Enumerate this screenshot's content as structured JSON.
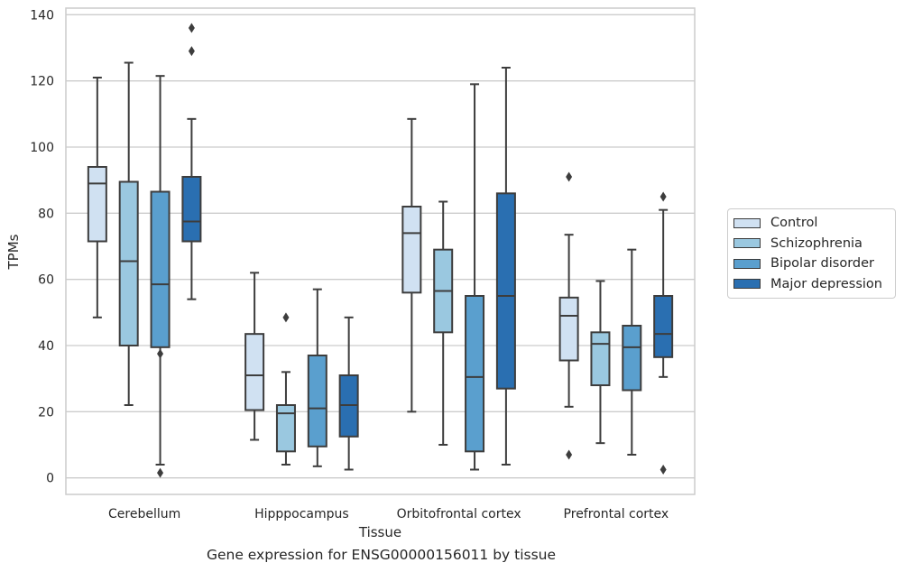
{
  "chart_data": {
    "type": "box",
    "title": "Gene expression for ENSG00000156011 by tissue",
    "xlabel": "Tissue",
    "ylabel": "TPMs",
    "ylim": [
      -5,
      142
    ],
    "yticks": [
      0,
      20,
      40,
      60,
      80,
      100,
      120,
      140
    ],
    "grid": "horizontal",
    "legend_position": "right",
    "categories": [
      "Cerebellum",
      "Hipppocampus",
      "Orbitofrontal cortex",
      "Prefrontal cortex"
    ],
    "series": [
      {
        "name": "Control",
        "color": "#d0e1f2",
        "boxes": [
          {
            "whisker_low": 48.5,
            "q1": 71.5,
            "median": 89,
            "q3": 94,
            "whisker_high": 121,
            "outliers": []
          },
          {
            "whisker_low": 11.5,
            "q1": 20.5,
            "median": 31,
            "q3": 43.5,
            "whisker_high": 62,
            "outliers": []
          },
          {
            "whisker_low": 20,
            "q1": 56,
            "median": 74,
            "q3": 82,
            "whisker_high": 108.5,
            "outliers": []
          },
          {
            "whisker_low": 21.5,
            "q1": 35.5,
            "median": 49,
            "q3": 54.5,
            "whisker_high": 73.5,
            "outliers": [
              7,
              91
            ]
          }
        ]
      },
      {
        "name": "Schizophrenia",
        "color": "#9ac8e0",
        "boxes": [
          {
            "whisker_low": 22,
            "q1": 40,
            "median": 65.5,
            "q3": 89.5,
            "whisker_high": 125.5,
            "outliers": []
          },
          {
            "whisker_low": 4,
            "q1": 8,
            "median": 19.5,
            "q3": 22,
            "whisker_high": 32,
            "outliers": [
              48.5
            ]
          },
          {
            "whisker_low": 10,
            "q1": 44,
            "median": 56.5,
            "q3": 69,
            "whisker_high": 83.5,
            "outliers": []
          },
          {
            "whisker_low": 10.5,
            "q1": 28,
            "median": 40.5,
            "q3": 44,
            "whisker_high": 59.5,
            "outliers": []
          }
        ]
      },
      {
        "name": "Bipolar disorder",
        "color": "#5a9fce",
        "boxes": [
          {
            "whisker_low": 4,
            "q1": 39.5,
            "median": 58.5,
            "q3": 86.5,
            "whisker_high": 121.5,
            "outliers": [
              1.5,
              37.5
            ]
          },
          {
            "whisker_low": 3.5,
            "q1": 9.5,
            "median": 21,
            "q3": 37,
            "whisker_high": 57,
            "outliers": []
          },
          {
            "whisker_low": 2.5,
            "q1": 8,
            "median": 30.5,
            "q3": 55,
            "whisker_high": 119,
            "outliers": []
          },
          {
            "whisker_low": 7,
            "q1": 26.5,
            "median": 39.5,
            "q3": 46,
            "whisker_high": 69,
            "outliers": []
          }
        ]
      },
      {
        "name": "Major depression",
        "color": "#2a6fb1",
        "boxes": [
          {
            "whisker_low": 54,
            "q1": 71.5,
            "median": 77.5,
            "q3": 91,
            "whisker_high": 108.5,
            "outliers": [
              129,
              136
            ]
          },
          {
            "whisker_low": 2.5,
            "q1": 12.5,
            "median": 22,
            "q3": 31,
            "whisker_high": 48.5,
            "outliers": []
          },
          {
            "whisker_low": 4,
            "q1": 27,
            "median": 55,
            "q3": 86,
            "whisker_high": 124,
            "outliers": []
          },
          {
            "whisker_low": 30.5,
            "q1": 36.5,
            "median": 43.5,
            "q3": 55,
            "whisker_high": 81,
            "outliers": [
              2.5,
              85
            ]
          }
        ]
      }
    ]
  }
}
